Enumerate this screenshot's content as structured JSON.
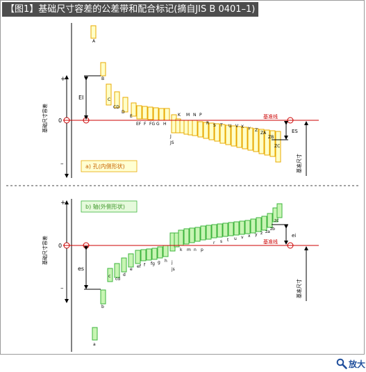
{
  "title": "【图1】基础尺寸容差的公差带和配合标记(摘自JIS B 0401–1)",
  "zoom_label": "放大",
  "icons": {
    "zoom": "magnifier-icon"
  },
  "colors": {
    "hole_fill": "#ffffc8",
    "hole_stroke": "#e8a800",
    "shaft_fill": "#c8f5b4",
    "shaft_stroke": "#3cb43c",
    "zero_line": "#cc0000",
    "basic_size_label": "#cc0000",
    "caption_bg": "#ffffd2",
    "caption_text": "#c86400",
    "shaft_caption_bg": "#e6fadc",
    "shaft_caption_text": "#3c9628"
  },
  "holes": {
    "caption": "a) 孔(内侧形状)",
    "axis_label": "基础尺寸容差",
    "plus": "+",
    "zero": "0",
    "minus": "–",
    "zero_line_label": "基准线",
    "basic_size": "基准尺寸",
    "ei_label": "EI",
    "es_label": "ES",
    "labels": [
      "A",
      "B",
      "C",
      "CD",
      "D",
      "E",
      "EF",
      "F",
      "FG",
      "G",
      "H",
      "J",
      "JS",
      "K",
      "M",
      "N",
      "P",
      "R",
      "S",
      "T",
      "U",
      "V",
      "X",
      "Y",
      "Z",
      "ZA",
      "ZB",
      "ZC"
    ]
  },
  "shafts": {
    "caption": "b) 轴(外侧形状)",
    "axis_label": "基础尺寸容差",
    "plus": "+",
    "zero": "0",
    "minus": "–",
    "zero_line_label": "基准线",
    "basic_size": "基准尺寸",
    "es_label": "es",
    "ei_label": "ei",
    "labels": [
      "a",
      "b",
      "c",
      "cd",
      "d",
      "e",
      "ef",
      "f",
      "fg",
      "g",
      "h",
      "j",
      "js",
      "k",
      "m",
      "n",
      "p",
      "r",
      "s",
      "t",
      "u",
      "v",
      "x",
      "y",
      "z",
      "za",
      "zb",
      "zc"
    ]
  }
}
